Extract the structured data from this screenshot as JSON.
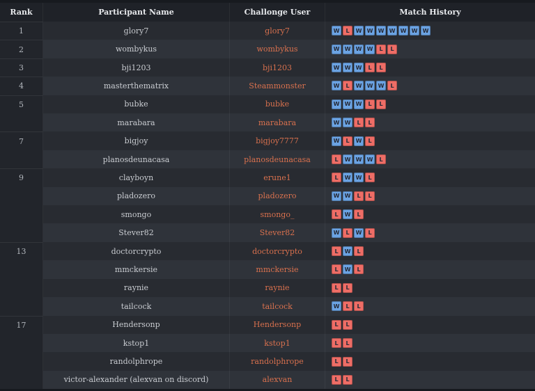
{
  "table": {
    "columns": [
      "Rank",
      "Participant Name",
      "Challonge User",
      "Match History"
    ],
    "badge_legend": {
      "W": "win",
      "L": "loss"
    },
    "colors": {
      "win_badge": "#6ba3e3",
      "loss_badge": "#ee6d66",
      "username_link": "#d9714e",
      "row_dark": "#282b31",
      "row_light": "#2f333a",
      "rank_column_bg": "#22252b",
      "header_bg": "#1f2228",
      "page_bg": "#171a1f"
    },
    "rows": [
      {
        "rank": "1",
        "name": "glory7",
        "user": "glory7",
        "history": [
          "W",
          "L",
          "W",
          "W",
          "W",
          "W",
          "W",
          "W",
          "W"
        ]
      },
      {
        "rank": "2",
        "name": "wombykus",
        "user": "wombykus",
        "history": [
          "W",
          "W",
          "W",
          "W",
          "L",
          "L"
        ]
      },
      {
        "rank": "3",
        "name": "bji1203",
        "user": "bji1203",
        "history": [
          "W",
          "W",
          "W",
          "L",
          "L"
        ]
      },
      {
        "rank": "4",
        "name": "masterthematrix",
        "user": "Steammonster",
        "history": [
          "W",
          "L",
          "W",
          "W",
          "W",
          "L"
        ]
      },
      {
        "rank": "5",
        "name": "bubke",
        "user": "bubke",
        "history": [
          "W",
          "W",
          "W",
          "L",
          "L"
        ]
      },
      {
        "rank": "",
        "name": "marabara",
        "user": "marabara",
        "history": [
          "W",
          "W",
          "L",
          "L"
        ]
      },
      {
        "rank": "7",
        "name": "bigjoy",
        "user": "bigjoy7777",
        "history": [
          "W",
          "L",
          "W",
          "L"
        ]
      },
      {
        "rank": "",
        "name": "planosdeunacasa",
        "user": "planosdeunacasa",
        "history": [
          "L",
          "W",
          "W",
          "W",
          "L"
        ]
      },
      {
        "rank": "9",
        "name": "clayboyn",
        "user": "erune1",
        "history": [
          "L",
          "W",
          "W",
          "L"
        ]
      },
      {
        "rank": "",
        "name": "pladozero",
        "user": "pladozero",
        "history": [
          "W",
          "W",
          "L",
          "L"
        ]
      },
      {
        "rank": "",
        "name": "smongo",
        "user": "smongo_",
        "history": [
          "L",
          "W",
          "L"
        ]
      },
      {
        "rank": "",
        "name": "Stever82",
        "user": "Stever82",
        "history": [
          "W",
          "L",
          "W",
          "L"
        ]
      },
      {
        "rank": "13",
        "name": "doctorcrypto",
        "user": "doctorcrypto",
        "history": [
          "L",
          "W",
          "L"
        ]
      },
      {
        "rank": "",
        "name": "mmckersie",
        "user": "mmckersie",
        "history": [
          "L",
          "W",
          "L"
        ]
      },
      {
        "rank": "",
        "name": "raynie",
        "user": "raynie",
        "history": [
          "L",
          "L"
        ]
      },
      {
        "rank": "",
        "name": "tailcock",
        "user": "tailcock",
        "history": [
          "W",
          "L",
          "L"
        ]
      },
      {
        "rank": "17",
        "name": "Hendersonp",
        "user": "Hendersonp",
        "history": [
          "L",
          "L"
        ]
      },
      {
        "rank": "",
        "name": "kstop1",
        "user": "kstop1",
        "history": [
          "L",
          "L"
        ]
      },
      {
        "rank": "",
        "name": "randolphrope",
        "user": "randolphrope",
        "history": [
          "L",
          "L"
        ]
      },
      {
        "rank": "",
        "name": "victor-alexander (alexvan on discord)",
        "user": "alexvan",
        "history": [
          "L",
          "L"
        ]
      }
    ]
  }
}
